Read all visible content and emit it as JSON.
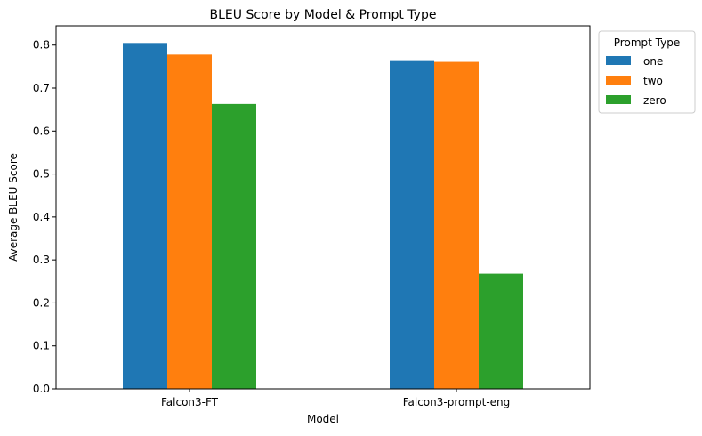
{
  "chart_data": {
    "type": "bar",
    "title": "BLEU Score by Model & Prompt Type",
    "xlabel": "Model",
    "ylabel": "Average BLEU Score",
    "categories": [
      "Falcon3-FT",
      "Falcon3-prompt-eng"
    ],
    "series": [
      {
        "name": "one",
        "values": [
          0.805,
          0.765
        ],
        "color": "#1f77b4"
      },
      {
        "name": "two",
        "values": [
          0.778,
          0.761
        ],
        "color": "#ff7f0e"
      },
      {
        "name": "zero",
        "values": [
          0.663,
          0.268
        ],
        "color": "#2ca02c"
      }
    ],
    "ylim": [
      0,
      0.845
    ],
    "yticks": [
      "0.0",
      "0.1",
      "0.2",
      "0.3",
      "0.4",
      "0.5",
      "0.6",
      "0.7",
      "0.8"
    ],
    "grid": false,
    "legend": {
      "title": "Prompt Type",
      "placement": "outside-top-right"
    }
  }
}
